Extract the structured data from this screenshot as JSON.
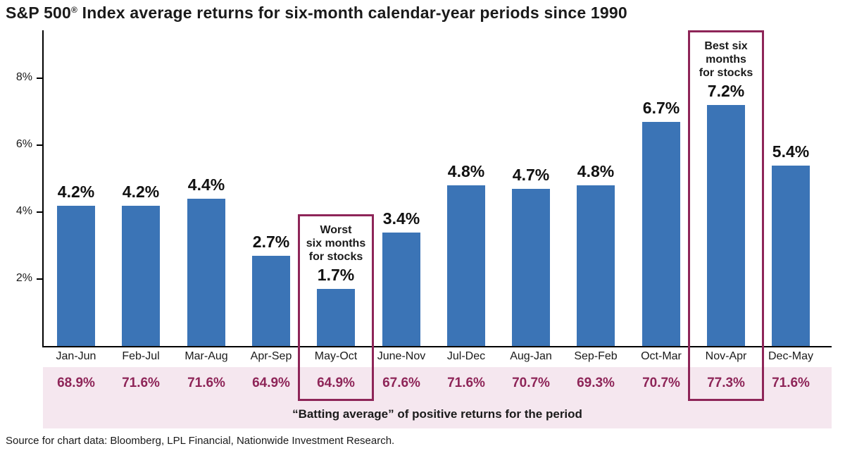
{
  "title": {
    "prefix": "S&P 500",
    "registered_mark": "®",
    "suffix": " Index average returns for six-month calendar-year periods since 1990"
  },
  "source_note": "Source for chart data: Bloomberg, LPL Financial, Nationwide Investment Research.",
  "colors": {
    "bar": "#3b74b6",
    "accent_magenta": "#8e2558",
    "band_background": "#f5e7ef",
    "text": "#1a1a1a",
    "axis": "#000000"
  },
  "chart_data": {
    "type": "bar",
    "title": "S&P 500® Index average returns for six-month calendar-year periods since 1990",
    "categories": [
      "Jan-Jun",
      "Feb-Jul",
      "Mar-Aug",
      "Apr-Sep",
      "May-Oct",
      "June-Nov",
      "Jul-Dec",
      "Aug-Jan",
      "Sep-Feb",
      "Oct-Mar",
      "Nov-Apr",
      "Dec-May"
    ],
    "values": [
      4.2,
      4.2,
      4.4,
      2.7,
      1.7,
      3.4,
      4.8,
      4.7,
      4.8,
      6.7,
      7.2,
      5.4
    ],
    "value_labels": [
      "4.2%",
      "4.2%",
      "4.4%",
      "2.7%",
      "1.7%",
      "3.4%",
      "4.8%",
      "4.7%",
      "4.8%",
      "6.7%",
      "7.2%",
      "5.4%"
    ],
    "batting_averages": [
      "68.9%",
      "71.6%",
      "71.6%",
      "64.9%",
      "64.9%",
      "67.6%",
      "71.6%",
      "70.7%",
      "69.3%",
      "70.7%",
      "77.3%",
      "71.6%"
    ],
    "y_ticks": [
      {
        "value": 2,
        "label": "2%"
      },
      {
        "value": 4,
        "label": "4%"
      },
      {
        "value": 6,
        "label": "6%"
      },
      {
        "value": 8,
        "label": "8%"
      }
    ],
    "ylim": [
      0,
      9.4
    ],
    "grid": false,
    "legend": "none",
    "band_caption": "“Batting average” of positive returns for the period",
    "annotations": [
      {
        "category_index": 4,
        "lines": [
          "Worst",
          "six months",
          "for stocks"
        ],
        "label": "Worst six months for stocks"
      },
      {
        "category_index": 10,
        "lines": [
          "Best six",
          "months",
          "for stocks"
        ],
        "label": "Best six months for stocks"
      }
    ]
  }
}
